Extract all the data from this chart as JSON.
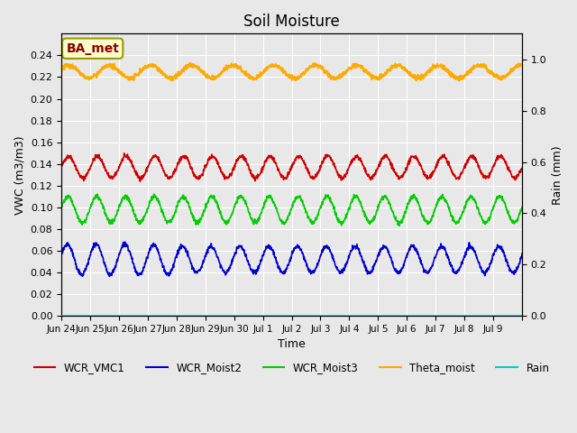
{
  "title": "Soil Moisture",
  "ylabel_left": "VWC (m3/m3)",
  "ylabel_right": "Rain (mm)",
  "xlabel": "Time",
  "plot_bg_color": "#e8e8e8",
  "ylim_left": [
    0.0,
    0.26
  ],
  "ylim_right": [
    0.0,
    1.1
  ],
  "yticks_left": [
    0.0,
    0.02,
    0.04,
    0.06,
    0.08,
    0.1,
    0.12,
    0.14,
    0.16,
    0.18,
    0.2,
    0.22,
    0.24
  ],
  "yticks_right": [
    0.0,
    0.2,
    0.4,
    0.6,
    0.8,
    1.0
  ],
  "series": {
    "WCR_VMC1": {
      "color": "#cc0000",
      "base": 0.137,
      "amp": 0.01,
      "freq": 1.0,
      "phase": 0.0
    },
    "WCR_Moist2": {
      "color": "#0000cc",
      "base": 0.052,
      "amp": 0.012,
      "freq": 1.0,
      "phase": 0.3
    },
    "WCR_Moist3": {
      "color": "#00cc00",
      "base": 0.098,
      "amp": 0.012,
      "freq": 1.0,
      "phase": 0.15
    },
    "Theta_moist": {
      "color": "#ffaa00",
      "base": 0.225,
      "amp": 0.006,
      "freq": 0.7,
      "phase": 0.5
    },
    "Rain": {
      "color": "#00cccc",
      "base": 0.0,
      "amp": 0.0,
      "freq": 1.0,
      "phase": 0.0
    }
  },
  "xtick_positions": [
    0,
    1,
    2,
    3,
    4,
    5,
    6,
    7,
    8,
    9,
    10,
    11,
    12,
    13,
    14,
    15,
    16
  ],
  "xtick_labels": [
    "Jun 24",
    "Jun 25",
    "Jun 26",
    "Jun 27",
    "Jun 28",
    "Jun 29",
    "Jun 30",
    "Jul 1",
    "Jul 2",
    "Jul 3",
    "Jul 4",
    "Jul 5",
    "Jul 6",
    "Jul 7",
    "Jul 8",
    "Jul 9",
    ""
  ],
  "annotation_text": "BA_met",
  "annotation_color": "#8b0000",
  "annotation_bg": "#ffffcc",
  "annotation_border": "#999900"
}
